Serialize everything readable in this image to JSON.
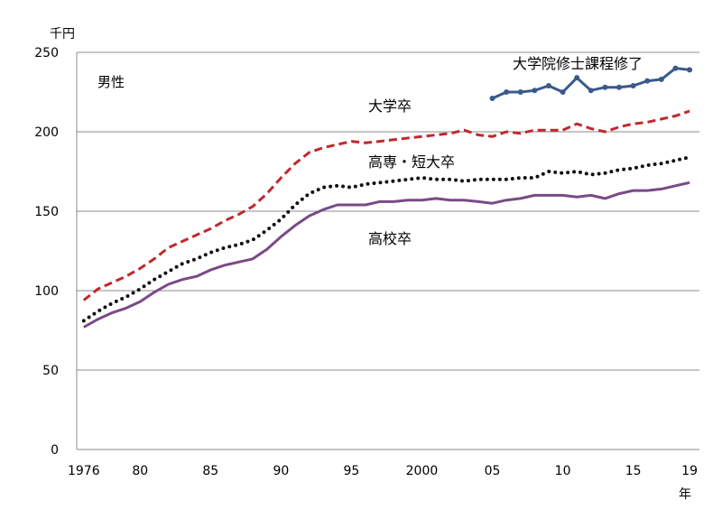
{
  "chart_data": {
    "type": "line",
    "unit_label": "千円",
    "xlabel": "年",
    "panel_label": "男性",
    "ylim": [
      0,
      250
    ],
    "yticks": [
      0,
      50,
      100,
      150,
      200,
      250
    ],
    "xlim": [
      1975.5,
      2019.7
    ],
    "xticks": [
      {
        "x": 1976,
        "label": "1976"
      },
      {
        "x": 1980,
        "label": "80"
      },
      {
        "x": 1985,
        "label": "85"
      },
      {
        "x": 1990,
        "label": "90"
      },
      {
        "x": 1995,
        "label": "95"
      },
      {
        "x": 2000,
        "label": "2000"
      },
      {
        "x": 2005,
        "label": "05"
      },
      {
        "x": 2010,
        "label": "10"
      },
      {
        "x": 2015,
        "label": "15"
      },
      {
        "x": 2019,
        "label": "19"
      }
    ],
    "grid": true,
    "series": [
      {
        "name": "大学院修士課程修了",
        "color": "#3a5a8c",
        "style": "solid-markers",
        "x": [
          2005,
          2006,
          2007,
          2008,
          2009,
          2010,
          2011,
          2012,
          2013,
          2014,
          2015,
          2016,
          2017,
          2018,
          2019
        ],
        "values": [
          221,
          225,
          225,
          226,
          229,
          225,
          234,
          226,
          228,
          228,
          229,
          232,
          233,
          240,
          239
        ]
      },
      {
        "name": "大学卒",
        "color": "#c0282d",
        "style": "dashed",
        "x": [
          1976,
          1977,
          1978,
          1979,
          1980,
          1981,
          1982,
          1983,
          1984,
          1985,
          1986,
          1987,
          1988,
          1989,
          1990,
          1991,
          1992,
          1993,
          1994,
          1995,
          1996,
          1997,
          1998,
          1999,
          2000,
          2001,
          2002,
          2003,
          2004,
          2005,
          2006,
          2007,
          2008,
          2009,
          2010,
          2011,
          2012,
          2013,
          2014,
          2015,
          2016,
          2017,
          2018,
          2019
        ],
        "values": [
          94,
          101,
          105,
          109,
          114,
          120,
          127,
          131,
          135,
          139,
          144,
          148,
          153,
          161,
          171,
          180,
          187,
          190,
          192,
          194,
          193,
          194,
          195,
          196,
          197,
          198,
          199,
          201,
          198,
          197,
          200,
          199,
          201,
          201,
          201,
          205,
          202,
          200,
          203,
          205,
          206,
          208,
          210,
          213
        ]
      },
      {
        "name": "高専・短大卒",
        "color": "#111111",
        "style": "dotted",
        "x": [
          1976,
          1977,
          1978,
          1979,
          1980,
          1981,
          1982,
          1983,
          1984,
          1985,
          1986,
          1987,
          1988,
          1989,
          1990,
          1991,
          1992,
          1993,
          1994,
          1995,
          1996,
          1997,
          1998,
          1999,
          2000,
          2001,
          2002,
          2003,
          2004,
          2005,
          2006,
          2007,
          2008,
          2009,
          2010,
          2011,
          2012,
          2013,
          2014,
          2015,
          2016,
          2017,
          2018,
          2019
        ],
        "values": [
          81,
          87,
          92,
          96,
          101,
          107,
          112,
          117,
          120,
          124,
          127,
          129,
          132,
          138,
          145,
          154,
          161,
          165,
          166,
          165,
          167,
          168,
          169,
          170,
          171,
          170,
          170,
          169,
          170,
          170,
          170,
          171,
          171,
          175,
          174,
          175,
          173,
          174,
          176,
          177,
          179,
          180,
          182,
          184
        ]
      },
      {
        "name": "高校卒",
        "color": "#7a4a86",
        "style": "solid",
        "x": [
          1976,
          1977,
          1978,
          1979,
          1980,
          1981,
          1982,
          1983,
          1984,
          1985,
          1986,
          1987,
          1988,
          1989,
          1990,
          1991,
          1992,
          1993,
          1994,
          1995,
          1996,
          1997,
          1998,
          1999,
          2000,
          2001,
          2002,
          2003,
          2004,
          2005,
          2006,
          2007,
          2008,
          2009,
          2010,
          2011,
          2012,
          2013,
          2014,
          2015,
          2016,
          2017,
          2018,
          2019
        ],
        "values": [
          77,
          82,
          86,
          89,
          93,
          99,
          104,
          107,
          109,
          113,
          116,
          118,
          120,
          126,
          134,
          141,
          147,
          151,
          154,
          154,
          154,
          156,
          156,
          157,
          157,
          158,
          157,
          157,
          156,
          155,
          157,
          158,
          160,
          160,
          160,
          159,
          160,
          158,
          161,
          163,
          163,
          164,
          166,
          168
        ]
      }
    ]
  }
}
